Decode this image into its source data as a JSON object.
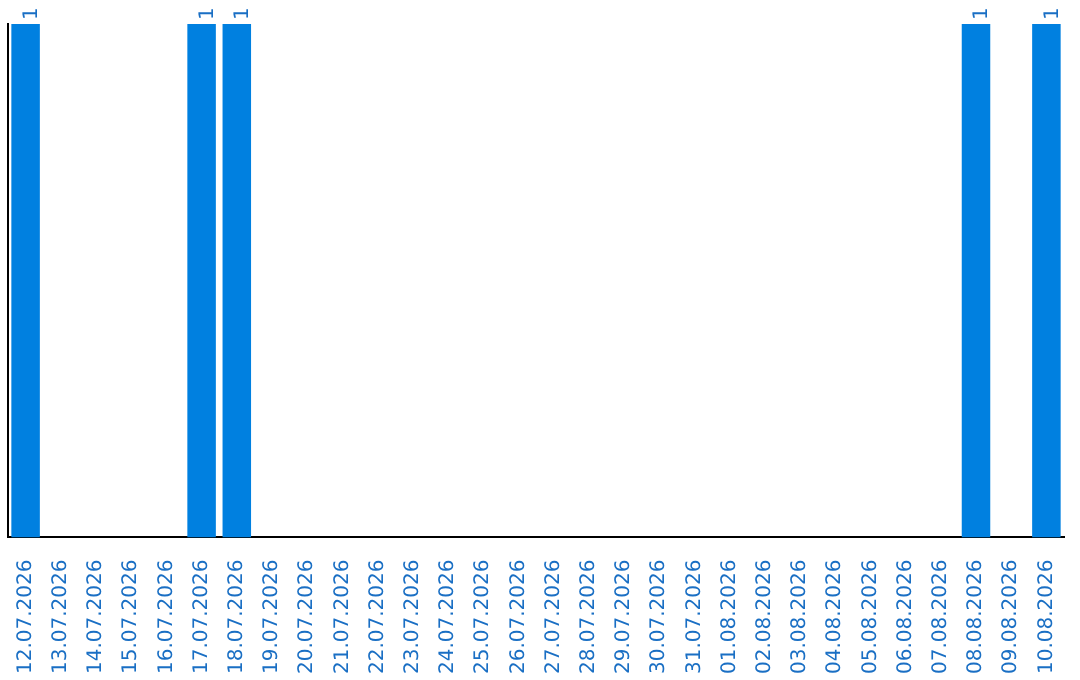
{
  "chart_data": {
    "type": "bar",
    "categories": [
      "12.07.2026",
      "13.07.2026",
      "14.07.2026",
      "15.07.2026",
      "16.07.2026",
      "17.07.2026",
      "18.07.2026",
      "19.07.2026",
      "20.07.2026",
      "21.07.2026",
      "22.07.2026",
      "23.07.2026",
      "24.07.2026",
      "25.07.2026",
      "26.07.2026",
      "27.07.2026",
      "28.07.2026",
      "29.07.2026",
      "30.07.2026",
      "31.07.2026",
      "01.08.2026",
      "02.08.2026",
      "03.08.2026",
      "04.08.2026",
      "05.08.2026",
      "06.08.2026",
      "07.08.2026",
      "08.08.2026",
      "09.08.2026",
      "10.08.2026"
    ],
    "values": [
      1,
      0,
      0,
      0,
      0,
      1,
      1,
      0,
      0,
      0,
      0,
      0,
      0,
      0,
      0,
      0,
      0,
      0,
      0,
      0,
      0,
      0,
      0,
      0,
      0,
      0,
      0,
      1,
      0,
      1
    ],
    "value_labels": [
      "1",
      null,
      null,
      null,
      null,
      "1",
      "1",
      null,
      null,
      null,
      null,
      null,
      null,
      null,
      null,
      null,
      null,
      null,
      null,
      null,
      null,
      null,
      null,
      null,
      null,
      null,
      null,
      "1",
      null,
      "1"
    ],
    "color": "#0080e0",
    "ylim": [
      0,
      1
    ],
    "tick_labels": "x",
    "grid": false,
    "legend": false
  }
}
